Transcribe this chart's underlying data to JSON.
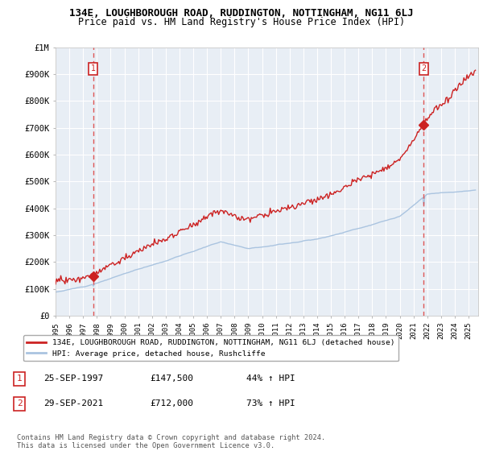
{
  "title": "134E, LOUGHBOROUGH ROAD, RUDDINGTON, NOTTINGHAM, NG11 6LJ",
  "subtitle": "Price paid vs. HM Land Registry's House Price Index (HPI)",
  "ylim": [
    0,
    1000000
  ],
  "yticks": [
    0,
    100000,
    200000,
    300000,
    400000,
    500000,
    600000,
    700000,
    800000,
    900000,
    1000000
  ],
  "ytick_labels": [
    "£0",
    "£100K",
    "£200K",
    "£300K",
    "£400K",
    "£500K",
    "£600K",
    "£700K",
    "£800K",
    "£900K",
    "£1M"
  ],
  "xlim_start": 1995.3,
  "xlim_end": 2025.7,
  "hpi_color": "#aac4e0",
  "price_color": "#cc2222",
  "marker_color": "#cc2222",
  "vline_color": "#dd4444",
  "sale1_year": 1997.73,
  "sale1_price": 147500,
  "sale1_label": "1",
  "sale1_date": "25-SEP-1997",
  "sale1_amount": "£147,500",
  "sale1_pct": "44% ↑ HPI",
  "sale2_year": 2021.75,
  "sale2_price": 712000,
  "sale2_label": "2",
  "sale2_date": "29-SEP-2021",
  "sale2_amount": "£712,000",
  "sale2_pct": "73% ↑ HPI",
  "legend_line1": "134E, LOUGHBOROUGH ROAD, RUDDINGTON, NOTTINGHAM, NG11 6LJ (detached house)",
  "legend_line2": "HPI: Average price, detached house, Rushcliffe",
  "footnote": "Contains HM Land Registry data © Crown copyright and database right 2024.\nThis data is licensed under the Open Government Licence v3.0.",
  "background_color": "#ffffff",
  "plot_bg_color": "#e8eef5",
  "grid_color": "#ffffff",
  "title_fontsize": 9,
  "subtitle_fontsize": 9
}
